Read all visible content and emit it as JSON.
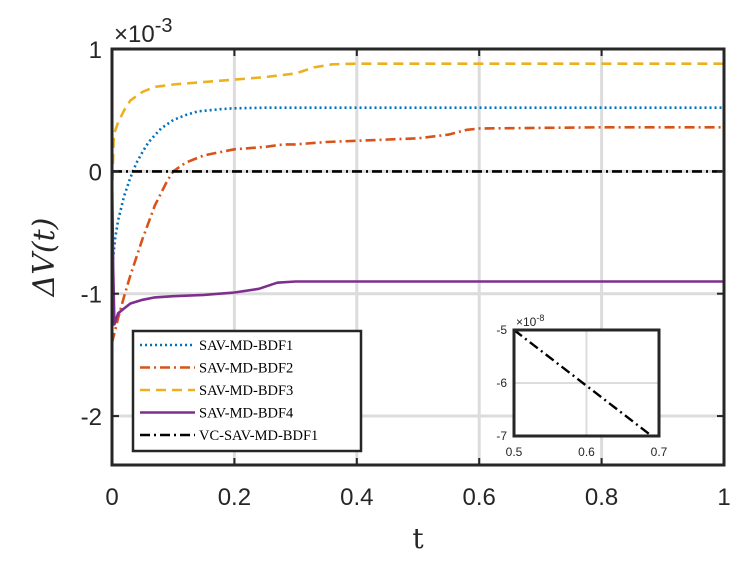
{
  "chart_data": {
    "type": "line",
    "title": "",
    "xlabel": "t",
    "ylabel": "ΔV(t)",
    "xlim": [
      0,
      1
    ],
    "ylim": [
      -2.4,
      1
    ],
    "y_exponent_label": "×10",
    "y_exponent_power": "-3",
    "xticks": [
      0,
      0.2,
      0.4,
      0.6,
      0.8,
      1
    ],
    "xtick_labels": [
      "0",
      "0.2",
      "0.4",
      "0.6",
      "0.8",
      "1"
    ],
    "yticks": [
      1,
      0,
      -1,
      -2
    ],
    "ytick_labels": [
      "1",
      "0",
      "-1",
      "-2"
    ],
    "grid": true,
    "legend_position": "bottom-left",
    "series": [
      {
        "name": "SAV-MD-BDF1",
        "color": "#0072BD",
        "dash": "dotted",
        "x": [
          0,
          0.005,
          0.01,
          0.02,
          0.03,
          0.04,
          0.05,
          0.06,
          0.08,
          0.1,
          0.12,
          0.14,
          0.16,
          0.18,
          0.2,
          0.25,
          0.3,
          0.4,
          0.5,
          0.6,
          0.7,
          0.8,
          0.9,
          1.0
        ],
        "values": [
          -0.8,
          -0.55,
          -0.4,
          -0.2,
          -0.05,
          0.07,
          0.16,
          0.24,
          0.35,
          0.42,
          0.46,
          0.49,
          0.5,
          0.51,
          0.515,
          0.52,
          0.52,
          0.52,
          0.52,
          0.52,
          0.52,
          0.52,
          0.52,
          0.52
        ]
      },
      {
        "name": "SAV-MD-BDF2",
        "color": "#D95319",
        "dash": "dashdot",
        "x": [
          0,
          0.005,
          0.01,
          0.02,
          0.03,
          0.05,
          0.07,
          0.09,
          0.1,
          0.12,
          0.15,
          0.2,
          0.25,
          0.28,
          0.3,
          0.35,
          0.4,
          0.5,
          0.55,
          0.58,
          0.6,
          0.7,
          0.8,
          0.9,
          1.0
        ],
        "values": [
          -1.4,
          -1.3,
          -1.2,
          -1.02,
          -0.85,
          -0.55,
          -0.28,
          -0.08,
          0.0,
          0.07,
          0.13,
          0.18,
          0.2,
          0.22,
          0.22,
          0.24,
          0.25,
          0.27,
          0.3,
          0.34,
          0.35,
          0.355,
          0.36,
          0.36,
          0.36
        ]
      },
      {
        "name": "SAV-MD-BDF3",
        "color": "#EDB120",
        "dash": "dashed",
        "x": [
          0,
          0.003,
          0.01,
          0.02,
          0.03,
          0.05,
          0.07,
          0.1,
          0.15,
          0.2,
          0.25,
          0.3,
          0.33,
          0.36,
          0.4,
          0.5,
          0.6,
          0.7,
          0.8,
          0.9,
          1.0
        ],
        "values": [
          -0.2,
          0.3,
          0.4,
          0.5,
          0.58,
          0.65,
          0.69,
          0.71,
          0.73,
          0.75,
          0.77,
          0.8,
          0.85,
          0.875,
          0.88,
          0.88,
          0.88,
          0.88,
          0.88,
          0.88,
          0.88
        ]
      },
      {
        "name": "SAV-MD-BDF4",
        "color": "#7E2F8E",
        "dash": "solid",
        "x": [
          0,
          0.002,
          0.004,
          0.006,
          0.01,
          0.02,
          0.03,
          0.05,
          0.07,
          0.1,
          0.15,
          0.2,
          0.24,
          0.27,
          0.3,
          0.4,
          0.5,
          0.6,
          0.7,
          0.8,
          0.9,
          1.0
        ],
        "values": [
          0.0,
          -0.8,
          -1.25,
          -1.22,
          -1.16,
          -1.12,
          -1.08,
          -1.05,
          -1.03,
          -1.02,
          -1.01,
          -0.99,
          -0.96,
          -0.91,
          -0.9,
          -0.9,
          -0.9,
          -0.9,
          -0.9,
          -0.9,
          -0.9,
          -0.9
        ]
      },
      {
        "name": "VC-SAV-MD-BDF1",
        "color": "#000000",
        "dash": "dashdot",
        "x": [
          0,
          1
        ],
        "values": [
          0,
          0
        ]
      }
    ],
    "inset": {
      "xlim": [
        0.5,
        0.7
      ],
      "ylim": [
        -7,
        -5
      ],
      "xticks": [
        0.5,
        0.6,
        0.7
      ],
      "xtick_labels": [
        "0.5",
        "0.6",
        "0.7"
      ],
      "yticks": [
        -5,
        -6,
        -7
      ],
      "ytick_labels": [
        "-5",
        "-6",
        "-7"
      ],
      "y_exponent_label": "×10",
      "y_exponent_power": "-8",
      "line": {
        "x": [
          0.5,
          0.69
        ],
        "values": [
          -5,
          -7
        ],
        "color": "#000000",
        "dash": "dashdot"
      }
    }
  }
}
